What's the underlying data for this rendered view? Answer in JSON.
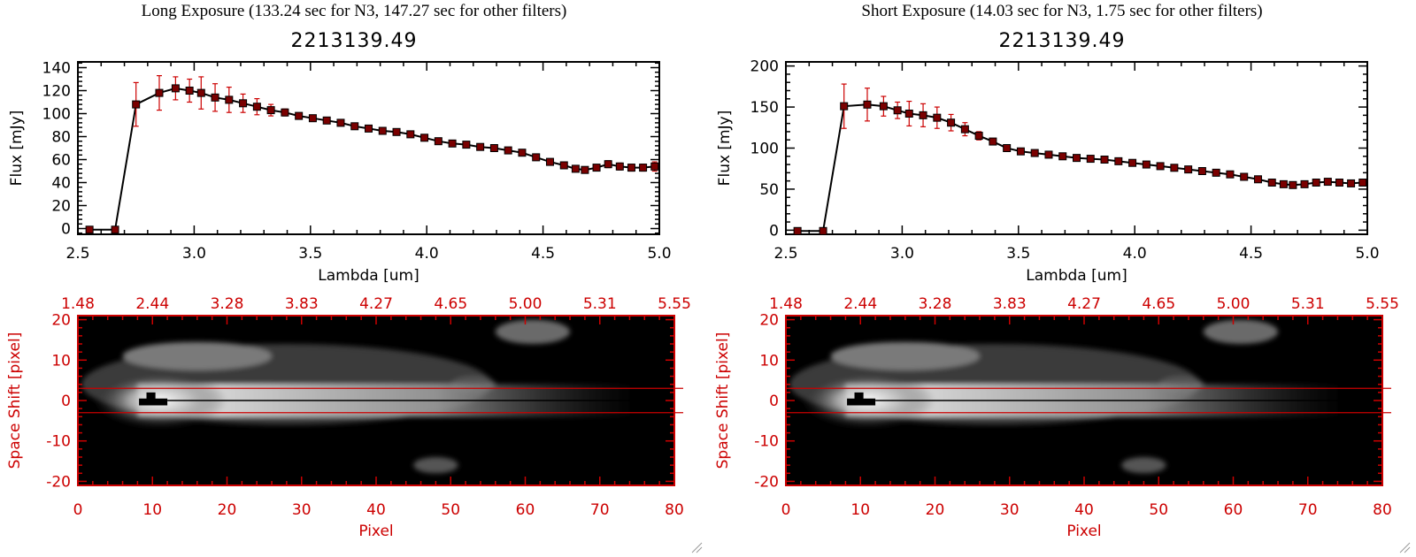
{
  "colors": {
    "errorbar": "#cc0000",
    "marker": "#7a0000",
    "axis_red": "#cc0000",
    "line": "#000000"
  },
  "panels": [
    {
      "title": "Long Exposure (133.24 sec for N3, 147.27 sec for other filters)",
      "object_id": "2213139.49",
      "chart_data": {
        "type": "line",
        "title": "2213139.49",
        "xlabel": "Lambda [um]",
        "ylabel": "Flux [mJy]",
        "xlim": [
          2.5,
          5.0
        ],
        "ylim": [
          -5,
          145
        ],
        "xticks": [
          "2.5",
          "3.0",
          "3.5",
          "4.0",
          "4.5",
          "5.0"
        ],
        "yticks": [
          "0",
          "20",
          "40",
          "60",
          "80",
          "100",
          "120",
          "140"
        ],
        "x": [
          2.55,
          2.66,
          2.75,
          2.85,
          2.92,
          2.98,
          3.03,
          3.09,
          3.15,
          3.21,
          3.27,
          3.33,
          3.39,
          3.45,
          3.51,
          3.57,
          3.63,
          3.69,
          3.75,
          3.81,
          3.87,
          3.93,
          3.99,
          4.05,
          4.11,
          4.17,
          4.23,
          4.29,
          4.35,
          4.41,
          4.47,
          4.53,
          4.59,
          4.64,
          4.68,
          4.73,
          4.78,
          4.83,
          4.88,
          4.93,
          4.98
        ],
        "y": [
          -1,
          -1,
          108,
          118,
          122,
          120,
          118,
          114,
          112,
          109,
          106,
          103,
          101,
          98,
          96,
          94,
          92,
          89,
          87,
          85,
          84,
          82,
          79,
          76,
          74,
          73,
          71,
          70,
          68,
          66,
          62,
          58,
          55,
          52,
          51,
          53,
          56,
          54,
          53,
          53,
          54
        ],
        "yerr": [
          0,
          0,
          19,
          15,
          10,
          10,
          14,
          12,
          11,
          8,
          7,
          5,
          3,
          2,
          2,
          2,
          2,
          2,
          2,
          2,
          2,
          2,
          2,
          2,
          2,
          2,
          2,
          2,
          2,
          2,
          2,
          2,
          2,
          2,
          2,
          2,
          3,
          3,
          3,
          3,
          4
        ]
      },
      "image": {
        "xlabel": "Pixel",
        "ylabel": "Space Shift [pixel]",
        "xticks": [
          "0",
          "10",
          "20",
          "30",
          "40",
          "50",
          "60",
          "70",
          "80"
        ],
        "yticks": [
          "-20",
          "-10",
          "0",
          "10",
          "20"
        ],
        "top_ticks": [
          "1.48",
          "2.44",
          "3.28",
          "3.83",
          "4.27",
          "4.65",
          "5.00",
          "5.31",
          "5.55"
        ]
      }
    },
    {
      "title": "Short Exposure (14.03 sec for N3, 1.75 sec for other filters)",
      "object_id": "2213139.49",
      "chart_data": {
        "type": "line",
        "title": "2213139.49",
        "xlabel": "Lambda [um]",
        "ylabel": "Flux [mJy]",
        "xlim": [
          2.5,
          5.0
        ],
        "ylim": [
          -5,
          205
        ],
        "xticks": [
          "2.5",
          "3.0",
          "3.5",
          "4.0",
          "4.5",
          "5.0"
        ],
        "yticks": [
          "0",
          "50",
          "100",
          "150",
          "200"
        ],
        "x": [
          2.55,
          2.66,
          2.75,
          2.85,
          2.92,
          2.98,
          3.03,
          3.09,
          3.15,
          3.21,
          3.27,
          3.33,
          3.39,
          3.45,
          3.51,
          3.57,
          3.63,
          3.69,
          3.75,
          3.81,
          3.87,
          3.93,
          3.99,
          4.05,
          4.11,
          4.17,
          4.23,
          4.29,
          4.35,
          4.41,
          4.47,
          4.53,
          4.59,
          4.64,
          4.68,
          4.73,
          4.78,
          4.83,
          4.88,
          4.93,
          4.98
        ],
        "y": [
          -1,
          -1,
          151,
          153,
          151,
          146,
          142,
          140,
          137,
          131,
          123,
          115,
          108,
          100,
          96,
          94,
          92,
          90,
          88,
          87,
          86,
          84,
          82,
          80,
          78,
          76,
          74,
          72,
          70,
          68,
          65,
          62,
          58,
          56,
          55,
          56,
          58,
          59,
          58,
          57,
          58
        ],
        "yerr": [
          0,
          0,
          27,
          20,
          12,
          10,
          15,
          14,
          13,
          10,
          8,
          5,
          3,
          2,
          2,
          2,
          2,
          2,
          2,
          2,
          2,
          2,
          2,
          2,
          2,
          2,
          2,
          2,
          2,
          2,
          2,
          2,
          2,
          2,
          2,
          2,
          3,
          3,
          3,
          3,
          4
        ]
      },
      "image": {
        "xlabel": "Pixel",
        "ylabel": "Space Shift [pixel]",
        "xticks": [
          "0",
          "10",
          "20",
          "30",
          "40",
          "50",
          "60",
          "70",
          "80"
        ],
        "yticks": [
          "-20",
          "-10",
          "0",
          "10",
          "20"
        ],
        "top_ticks": [
          "1.48",
          "2.44",
          "3.28",
          "3.83",
          "4.27",
          "4.65",
          "5.00",
          "5.31",
          "5.55"
        ]
      }
    }
  ]
}
